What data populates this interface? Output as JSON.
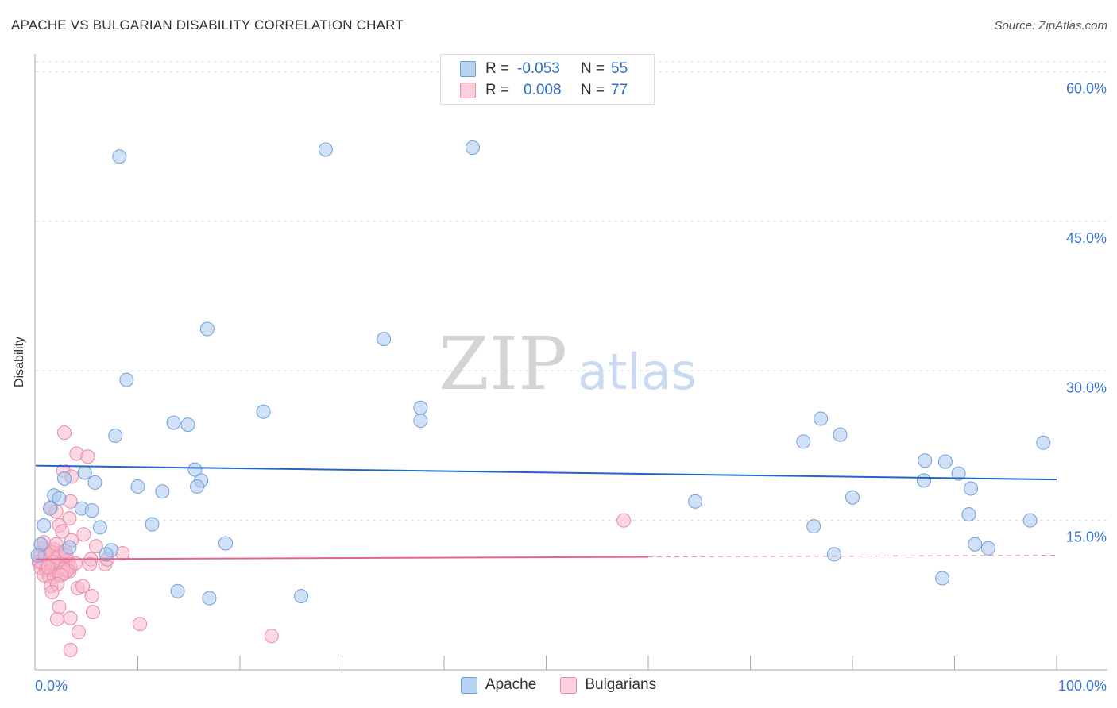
{
  "header": {
    "title": "APACHE VS BULGARIAN DISABILITY CORRELATION CHART",
    "source": "Source: ZipAtlas.com"
  },
  "watermark": {
    "zip": "ZIP",
    "atlas": "atlas"
  },
  "legend": {
    "rows": [
      {
        "name": "Apache",
        "r_label": "R =",
        "r_value": "-0.053",
        "n_label": "N =",
        "n_value": "55"
      },
      {
        "name": "Bulgarians",
        "r_label": "R =",
        "r_value": "0.008",
        "n_label": "N =",
        "n_value": "77"
      }
    ]
  },
  "colors": {
    "apache_fill": "#a9c8f0",
    "apache_stroke": "#6f9fd8",
    "apache_line": "#2166c8",
    "bulgarian_fill": "#f7b8cb",
    "bulgarian_stroke": "#e98aa6",
    "bulgarian_line": "#e5638e",
    "tick_label": "#3a75d1",
    "grid": "#dddddd"
  },
  "chart_data": {
    "type": "scatter",
    "title": "APACHE VS BULGARIAN DISABILITY CORRELATION CHART",
    "xlabel": "",
    "ylabel": "Disability",
    "xlim": [
      0,
      100
    ],
    "ylim": [
      0,
      61
    ],
    "x_tick_labels": [
      "0.0%",
      "100.0%"
    ],
    "y_ticks": [
      15,
      30,
      45,
      60
    ],
    "y_tick_labels": [
      "15.0%",
      "30.0%",
      "45.0%",
      "60.0%"
    ],
    "grid": true,
    "legend_position": "top-center",
    "series": [
      {
        "name": "Apache",
        "r": -0.053,
        "n": 55,
        "trend": {
          "x": [
            0,
            100
          ],
          "y": [
            20.5,
            19.1
          ],
          "dashed_from": null
        },
        "points": [
          [
            8.2,
            51.5
          ],
          [
            28.4,
            52.2
          ],
          [
            42.8,
            52.4
          ],
          [
            16.8,
            34.2
          ],
          [
            34.1,
            33.2
          ],
          [
            8.9,
            29.1
          ],
          [
            13.5,
            24.8
          ],
          [
            14.9,
            24.6
          ],
          [
            22.3,
            25.9
          ],
          [
            37.7,
            26.3
          ],
          [
            37.7,
            25.0
          ],
          [
            7.8,
            23.5
          ],
          [
            15.6,
            20.1
          ],
          [
            16.2,
            19.0
          ],
          [
            15.8,
            18.4
          ],
          [
            10.0,
            18.4
          ],
          [
            12.4,
            17.9
          ],
          [
            4.8,
            19.8
          ],
          [
            2.8,
            19.2
          ],
          [
            5.8,
            18.8
          ],
          [
            1.8,
            17.5
          ],
          [
            2.3,
            17.2
          ],
          [
            1.4,
            16.2
          ],
          [
            4.5,
            16.2
          ],
          [
            5.5,
            16.0
          ],
          [
            0.8,
            14.5
          ],
          [
            6.3,
            14.3
          ],
          [
            11.4,
            14.6
          ],
          [
            13.9,
            7.9
          ],
          [
            17.0,
            7.2
          ],
          [
            18.6,
            12.7
          ],
          [
            7.4,
            12.0
          ],
          [
            6.9,
            11.6
          ],
          [
            3.3,
            12.3
          ],
          [
            26.0,
            7.4
          ],
          [
            64.6,
            16.9
          ],
          [
            75.2,
            22.9
          ],
          [
            76.9,
            25.2
          ],
          [
            78.8,
            23.6
          ],
          [
            80.0,
            17.3
          ],
          [
            87.1,
            21.0
          ],
          [
            87.0,
            19.0
          ],
          [
            89.1,
            20.9
          ],
          [
            90.4,
            19.7
          ],
          [
            91.6,
            18.2
          ],
          [
            91.4,
            15.6
          ],
          [
            92.0,
            12.6
          ],
          [
            93.3,
            12.2
          ],
          [
            97.4,
            15.0
          ],
          [
            98.7,
            22.8
          ],
          [
            78.2,
            11.6
          ],
          [
            76.2,
            14.4
          ],
          [
            88.8,
            9.2
          ],
          [
            0.5,
            12.6
          ],
          [
            0.2,
            11.5
          ]
        ]
      },
      {
        "name": "Bulgarians",
        "r": 0.008,
        "n": 77,
        "trend": {
          "x": [
            0,
            100
          ],
          "y": [
            11.1,
            11.5
          ],
          "dashed_from": 60
        },
        "points": [
          [
            2.8,
            23.8
          ],
          [
            4.0,
            21.7
          ],
          [
            5.1,
            21.4
          ],
          [
            2.7,
            20.0
          ],
          [
            3.5,
            19.4
          ],
          [
            1.5,
            16.3
          ],
          [
            3.4,
            16.9
          ],
          [
            2.0,
            15.9
          ],
          [
            3.3,
            15.2
          ],
          [
            2.3,
            14.5
          ],
          [
            2.6,
            13.9
          ],
          [
            4.7,
            13.6
          ],
          [
            3.5,
            13.0
          ],
          [
            5.9,
            12.4
          ],
          [
            8.5,
            11.7
          ],
          [
            0.7,
            12.2
          ],
          [
            1.2,
            12.0
          ],
          [
            1.8,
            12.1
          ],
          [
            2.5,
            11.8
          ],
          [
            0.4,
            11.4
          ],
          [
            0.9,
            11.3
          ],
          [
            1.4,
            11.2
          ],
          [
            1.9,
            11.1
          ],
          [
            2.9,
            11.0
          ],
          [
            3.2,
            10.9
          ],
          [
            0.3,
            10.8
          ],
          [
            0.6,
            10.7
          ],
          [
            1.1,
            10.6
          ],
          [
            1.6,
            10.5
          ],
          [
            2.1,
            10.4
          ],
          [
            2.6,
            10.6
          ],
          [
            3.0,
            10.5
          ],
          [
            3.4,
            10.3
          ],
          [
            0.5,
            10.2
          ],
          [
            1.0,
            10.1
          ],
          [
            1.5,
            10.0
          ],
          [
            2.0,
            9.9
          ],
          [
            2.4,
            9.8
          ],
          [
            2.8,
            9.7
          ],
          [
            3.3,
            9.9
          ],
          [
            0.8,
            9.5
          ],
          [
            1.3,
            9.4
          ],
          [
            1.8,
            9.3
          ],
          [
            2.3,
            9.6
          ],
          [
            0.4,
            10.9
          ],
          [
            0.9,
            11.6
          ],
          [
            1.6,
            11.8
          ],
          [
            2.2,
            11.3
          ],
          [
            2.7,
            10.1
          ],
          [
            3.1,
            10.0
          ],
          [
            1.7,
            10.8
          ],
          [
            1.2,
            10.3
          ],
          [
            2.5,
            9.5
          ],
          [
            5.4,
            11.1
          ],
          [
            5.3,
            10.6
          ],
          [
            6.8,
            10.6
          ],
          [
            7.0,
            11.1
          ],
          [
            1.5,
            8.4
          ],
          [
            2.1,
            8.6
          ],
          [
            1.6,
            7.8
          ],
          [
            4.1,
            8.2
          ],
          [
            4.6,
            8.4
          ],
          [
            5.5,
            7.4
          ],
          [
            2.3,
            6.3
          ],
          [
            5.6,
            5.8
          ],
          [
            2.1,
            5.1
          ],
          [
            3.4,
            5.2
          ],
          [
            4.2,
            3.8
          ],
          [
            10.2,
            4.6
          ],
          [
            23.1,
            3.4
          ],
          [
            3.4,
            2.0
          ],
          [
            57.6,
            15.0
          ],
          [
            0.8,
            12.8
          ],
          [
            2.0,
            12.6
          ],
          [
            3.0,
            11.5
          ],
          [
            3.9,
            10.7
          ],
          [
            2.9,
            11.9
          ]
        ]
      }
    ]
  }
}
